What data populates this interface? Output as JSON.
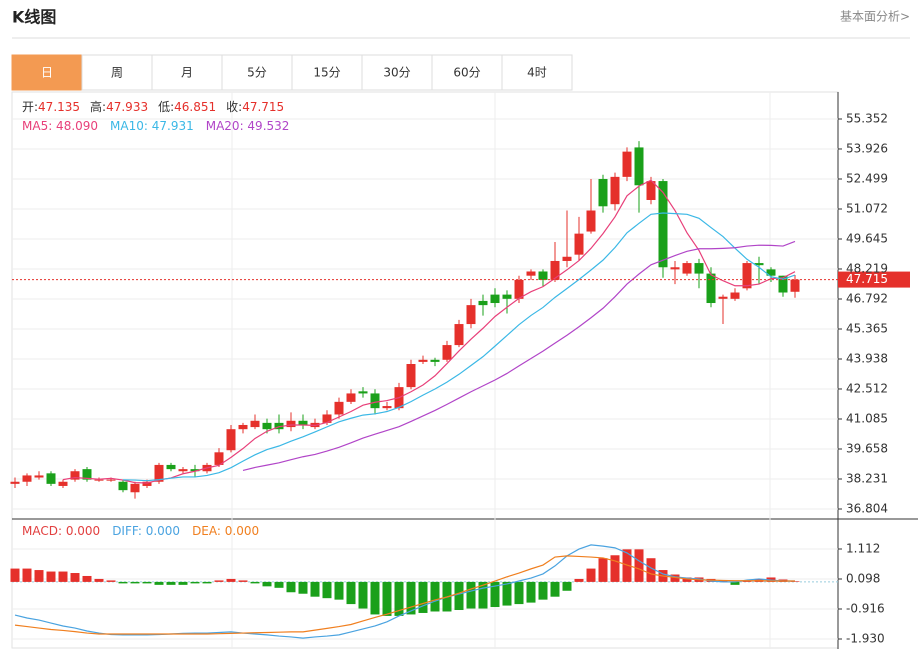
{
  "header": {
    "title": "K线图",
    "link": "基本面分析>"
  },
  "tabs": [
    "日",
    "周",
    "月",
    "5分",
    "15分",
    "30分",
    "60分",
    "4时"
  ],
  "chart_data": [
    {
      "type": "candlestick",
      "info": [
        {
          "label": "开:",
          "value": "47.135"
        },
        {
          "label": "高:",
          "value": "47.933"
        },
        {
          "label": "低:",
          "value": "46.851"
        },
        {
          "label": "收:",
          "value": "47.715"
        }
      ],
      "up_color": "#e5302b",
      "down_color": "#1aa01a",
      "open": [
        38.0,
        38.1,
        38.3,
        38.5,
        37.9,
        38.2,
        38.7,
        38.2,
        38.2,
        38.1,
        37.6,
        37.9,
        38.1,
        38.9,
        38.6,
        38.7,
        38.6,
        38.9,
        39.6,
        40.6,
        40.7,
        40.9,
        40.9,
        40.7,
        41.0,
        40.7,
        40.9,
        41.3,
        41.9,
        42.4,
        42.3,
        41.6,
        41.6,
        42.6,
        43.8,
        43.9,
        43.9,
        44.6,
        45.6,
        46.7,
        47.0,
        47.0,
        46.8,
        47.9,
        48.1,
        47.7,
        48.6,
        48.9,
        50.0,
        52.5,
        51.3,
        52.6,
        54.0,
        51.5,
        52.4,
        48.2,
        48.0,
        48.5,
        48.0,
        46.8,
        46.8,
        47.3,
        48.5,
        48.2,
        47.9,
        47.135
      ],
      "high": [
        38.3,
        38.5,
        38.6,
        38.6,
        38.2,
        38.7,
        38.8,
        38.3,
        38.3,
        38.2,
        38.1,
        38.2,
        39.0,
        39.0,
        38.8,
        38.9,
        39.0,
        39.7,
        40.8,
        40.9,
        41.3,
        41.1,
        41.3,
        41.4,
        41.3,
        41.1,
        41.5,
        42.1,
        42.5,
        42.6,
        42.5,
        41.9,
        42.8,
        43.9,
        44.1,
        44.0,
        44.8,
        45.8,
        46.8,
        47.0,
        47.3,
        47.2,
        47.9,
        48.2,
        48.2,
        49.5,
        51.0,
        50.7,
        52.5,
        52.7,
        52.8,
        54.0,
        54.3,
        52.6,
        52.5,
        48.6,
        48.6,
        48.7,
        48.3,
        47.0,
        47.3,
        48.6,
        48.8,
        48.3,
        47.9,
        47.933
      ],
      "low": [
        37.8,
        37.9,
        38.2,
        37.9,
        37.8,
        38.1,
        38.1,
        38.1,
        38.1,
        37.6,
        37.3,
        37.8,
        38.0,
        38.6,
        38.5,
        38.3,
        38.5,
        38.8,
        39.5,
        40.4,
        40.6,
        40.4,
        40.4,
        40.5,
        40.6,
        40.6,
        40.8,
        41.1,
        41.8,
        42.1,
        41.3,
        41.5,
        41.5,
        42.5,
        43.7,
        43.6,
        43.8,
        44.5,
        45.4,
        46.0,
        46.4,
        46.1,
        46.6,
        47.7,
        47.4,
        47.6,
        48.3,
        48.6,
        49.9,
        50.9,
        51.0,
        52.4,
        50.9,
        51.3,
        47.8,
        47.5,
        47.9,
        47.3,
        46.4,
        45.6,
        46.7,
        47.2,
        47.5,
        47.6,
        46.9,
        46.851
      ],
      "close": [
        38.1,
        38.4,
        38.4,
        38.0,
        38.1,
        38.6,
        38.2,
        38.2,
        38.2,
        37.7,
        38.0,
        38.1,
        38.9,
        38.7,
        38.7,
        38.6,
        38.9,
        39.5,
        40.6,
        40.8,
        41.0,
        40.6,
        40.6,
        41.0,
        40.8,
        40.9,
        41.3,
        41.9,
        42.3,
        42.3,
        41.6,
        41.7,
        42.6,
        43.7,
        43.9,
        43.8,
        44.6,
        45.6,
        46.5,
        46.5,
        46.6,
        46.8,
        47.7,
        48.1,
        47.7,
        48.6,
        48.8,
        49.9,
        51.0,
        51.2,
        52.6,
        53.8,
        52.2,
        52.4,
        48.3,
        48.3,
        48.5,
        48.0,
        46.6,
        46.9,
        47.1,
        48.5,
        48.4,
        47.9,
        47.1,
        47.715
      ],
      "series": [
        {
          "name": "MA5",
          "legend": "MA5: 48.090",
          "color": "#e8407a",
          "values": [
            null,
            null,
            null,
            null,
            38.2,
            38.3,
            38.26,
            38.22,
            38.26,
            38.18,
            38.06,
            38.04,
            38.18,
            38.28,
            38.48,
            38.6,
            38.76,
            38.88,
            39.26,
            39.68,
            40.16,
            40.5,
            40.72,
            40.8,
            40.8,
            40.78,
            40.92,
            41.18,
            41.44,
            41.74,
            41.88,
            41.96,
            42.1,
            42.38,
            42.7,
            43.14,
            43.72,
            44.32,
            44.88,
            45.4,
            45.96,
            46.4,
            46.82,
            47.14,
            47.38,
            47.78,
            48.18,
            48.62,
            49.2,
            49.9,
            50.7,
            51.7,
            52.16,
            52.44,
            51.86,
            51.0,
            49.94,
            49.1,
            47.94,
            47.66,
            47.42,
            47.42,
            47.5,
            47.76,
            47.8,
            48.09
          ]
        },
        {
          "name": "MA10",
          "legend": "MA10: 47.931",
          "color": "#3bb8e6",
          "values": [
            null,
            null,
            null,
            null,
            null,
            null,
            null,
            null,
            null,
            38.19,
            38.18,
            38.15,
            38.2,
            38.27,
            38.33,
            38.33,
            38.4,
            38.53,
            38.77,
            39.08,
            39.38,
            39.63,
            39.8,
            40.03,
            40.24,
            40.47,
            40.71,
            40.95,
            41.12,
            41.27,
            41.33,
            41.44,
            41.64,
            41.91,
            42.22,
            42.51,
            42.84,
            43.21,
            43.63,
            44.05,
            44.55,
            45.06,
            45.57,
            46.01,
            46.39,
            46.87,
            47.29,
            47.72,
            48.17,
            48.64,
            49.24,
            49.94,
            50.39,
            50.82,
            50.88,
            50.85,
            50.82,
            50.63,
            50.19,
            49.76,
            49.21,
            48.68,
            48.3,
            47.85,
            47.73,
            47.93
          ]
        },
        {
          "name": "MA20",
          "legend": "MA20: 49.532",
          "color": "#b145c8",
          "values": [
            null,
            null,
            null,
            null,
            null,
            null,
            null,
            null,
            null,
            null,
            null,
            null,
            null,
            null,
            null,
            null,
            null,
            null,
            null,
            38.64,
            38.78,
            38.89,
            39.0,
            39.15,
            39.29,
            39.4,
            39.56,
            39.74,
            39.95,
            40.18,
            40.36,
            40.54,
            40.72,
            40.97,
            41.23,
            41.49,
            41.78,
            42.08,
            42.38,
            42.66,
            42.94,
            43.25,
            43.61,
            43.96,
            44.31,
            44.69,
            45.07,
            45.47,
            45.9,
            46.35,
            46.9,
            47.5,
            47.98,
            48.42,
            48.64,
            48.86,
            49.06,
            49.18,
            49.18,
            49.2,
            49.23,
            49.31,
            49.35,
            49.34,
            49.31,
            49.53
          ]
        }
      ],
      "ylim": [
        36.376,
        56.636
      ],
      "yticks": [
        55.352,
        53.926,
        52.499,
        51.072,
        49.645,
        48.219,
        46.792,
        45.365,
        43.938,
        42.512,
        41.085,
        39.658,
        38.231,
        36.804
      ],
      "grid": true
    },
    {
      "type": "macd",
      "histogram": {
        "name": "MACD",
        "legend": "MACD: 0.000",
        "color": "#e24040",
        "up_color": "#e5302b",
        "down_color": "#1aa01a",
        "values": [
          0.45,
          0.45,
          0.4,
          0.35,
          0.35,
          0.3,
          0.2,
          0.1,
          0.05,
          -0.05,
          -0.05,
          -0.05,
          -0.1,
          -0.1,
          -0.1,
          -0.05,
          -0.05,
          0.05,
          0.1,
          0.05,
          -0.05,
          -0.15,
          -0.2,
          -0.35,
          -0.4,
          -0.5,
          -0.55,
          -0.6,
          -0.75,
          -0.9,
          -1.1,
          -1.15,
          -1.15,
          -1.1,
          -1.05,
          -1.0,
          -1.0,
          -0.95,
          -0.9,
          -0.9,
          -0.85,
          -0.8,
          -0.75,
          -0.7,
          -0.6,
          -0.5,
          -0.3,
          0.1,
          0.45,
          0.8,
          0.9,
          1.1,
          1.1,
          0.8,
          0.4,
          0.25,
          0.15,
          0.15,
          0.1,
          0.05,
          -0.1,
          0.05,
          0.1,
          0.15,
          0.08,
          0.02
        ]
      },
      "series": [
        {
          "name": "DIFF",
          "legend": "DIFF: 0.000",
          "color": "#4aa3e0",
          "values": [
            -1.12,
            -1.22,
            -1.29,
            -1.39,
            -1.49,
            -1.56,
            -1.66,
            -1.73,
            -1.78,
            -1.79,
            -1.79,
            -1.79,
            -1.78,
            -1.76,
            -1.74,
            -1.73,
            -1.73,
            -1.71,
            -1.69,
            -1.73,
            -1.76,
            -1.79,
            -1.83,
            -1.86,
            -1.9,
            -1.86,
            -1.83,
            -1.79,
            -1.69,
            -1.59,
            -1.49,
            -1.35,
            -1.15,
            -0.98,
            -0.81,
            -0.65,
            -0.51,
            -0.41,
            -0.31,
            -0.21,
            -0.14,
            -0.07,
            0.03,
            0.13,
            0.27,
            0.54,
            0.88,
            1.11,
            1.25,
            1.21,
            1.15,
            0.98,
            0.71,
            0.47,
            0.27,
            0.17,
            0.13,
            0.1,
            0.03,
            0.0,
            0.0,
            0.06,
            0.1,
            0.06,
            0.03,
            0.03
          ]
        },
        {
          "name": "DEA",
          "legend": "DEA: 0.000",
          "color": "#f07f1f",
          "values": [
            -1.46,
            -1.51,
            -1.56,
            -1.61,
            -1.64,
            -1.68,
            -1.73,
            -1.76,
            -1.76,
            -1.76,
            -1.76,
            -1.76,
            -1.76,
            -1.76,
            -1.76,
            -1.76,
            -1.76,
            -1.75,
            -1.74,
            -1.73,
            -1.72,
            -1.71,
            -1.7,
            -1.69,
            -1.69,
            -1.63,
            -1.57,
            -1.51,
            -1.44,
            -1.32,
            -1.2,
            -1.09,
            -0.97,
            -0.85,
            -0.73,
            -0.61,
            -0.51,
            -0.38,
            -0.24,
            -0.11,
            0.03,
            0.17,
            0.3,
            0.44,
            0.57,
            0.84,
            0.88,
            0.86,
            0.84,
            0.81,
            0.71,
            0.57,
            0.44,
            0.27,
            0.2,
            0.15,
            0.1,
            0.07,
            0.06,
            0.05,
            0.04,
            0.04,
            0.04,
            0.03,
            0.03,
            0.03
          ]
        }
      ],
      "ylim": [
        -2.268,
        2.092
      ],
      "yticks": [
        1.112,
        0.098,
        -0.916,
        {
          "value": -1.93,
          "label": "-1.930"
        }
      ],
      "grid": true
    }
  ]
}
